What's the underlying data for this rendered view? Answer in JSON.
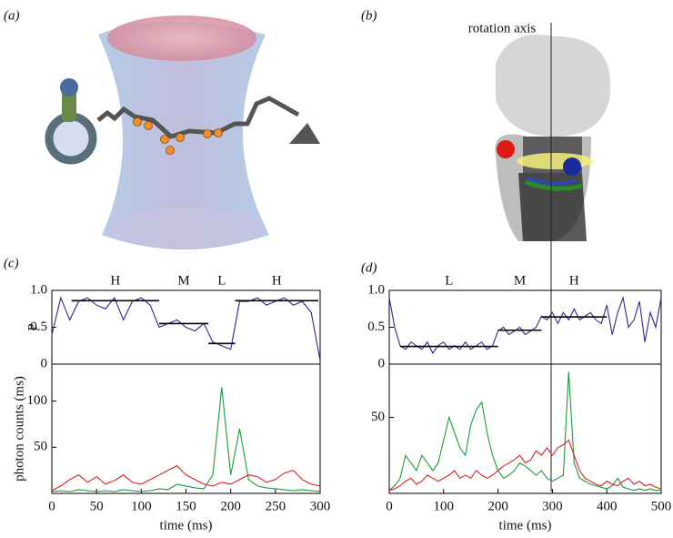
{
  "panel_labels": [
    "(a)",
    "(b)",
    "(c)",
    "(d)"
  ],
  "annotation": "rotation axis",
  "chart_data": [
    {
      "type": "line",
      "ylabel": "P",
      "xlim": [
        0,
        300
      ],
      "ylim": [
        0,
        1
      ],
      "yticks": [
        0,
        0.5,
        {
          "value": 1,
          "label": "1.0"
        }
      ],
      "x": [
        0,
        10,
        20,
        30,
        40,
        50,
        60,
        70,
        80,
        90,
        100,
        110,
        120,
        130,
        140,
        150,
        160,
        170,
        180,
        190,
        200,
        210,
        220,
        230,
        240,
        250,
        260,
        270,
        280,
        290,
        300
      ],
      "series": [
        {
          "color": "#2a2a8c",
          "values": [
            0.4,
            0.9,
            0.6,
            0.85,
            0.9,
            0.8,
            0.75,
            0.9,
            0.6,
            0.85,
            0.9,
            0.8,
            0.5,
            0.55,
            0.6,
            0.5,
            0.45,
            0.55,
            0.3,
            0.25,
            0.2,
            0.85,
            0.85,
            0.9,
            0.8,
            0.85,
            0.9,
            0.8,
            0.85,
            0.7,
            0.05
          ]
        }
      ],
      "levels": [
        {
          "label": "H",
          "x": [
            22,
            120
          ],
          "value": 0.86
        },
        {
          "label": "M",
          "x": [
            120,
            175
          ],
          "value": 0.55
        },
        {
          "label": "L",
          "x": [
            175,
            205
          ],
          "value": 0.28
        },
        {
          "label": "H",
          "x": [
            205,
            298
          ],
          "value": 0.86
        }
      ]
    },
    {
      "type": "line",
      "ylabel": "photon counts (ms)",
      "xlabel": "time (ms)",
      "xlim": [
        0,
        300
      ],
      "ylim": [
        0,
        140
      ],
      "xticks": [
        0,
        50,
        100,
        150,
        200,
        250,
        300
      ],
      "yticks": [
        50,
        100
      ],
      "x": [
        0,
        10,
        20,
        30,
        40,
        50,
        60,
        70,
        80,
        90,
        100,
        110,
        120,
        130,
        140,
        150,
        160,
        170,
        180,
        190,
        200,
        210,
        220,
        230,
        240,
        250,
        260,
        270,
        280,
        290,
        300
      ],
      "series": [
        {
          "color": "#1a9a3a",
          "values": [
            2,
            3,
            2,
            4,
            3,
            2,
            3,
            2,
            4,
            3,
            2,
            3,
            5,
            4,
            10,
            8,
            6,
            5,
            20,
            115,
            20,
            70,
            15,
            8,
            6,
            5,
            4,
            3,
            4,
            3,
            2
          ]
        },
        {
          "color": "#e02020",
          "values": [
            3,
            8,
            15,
            20,
            12,
            18,
            10,
            14,
            20,
            12,
            10,
            15,
            20,
            25,
            30,
            20,
            15,
            10,
            8,
            12,
            10,
            15,
            20,
            18,
            12,
            15,
            22,
            25,
            15,
            10,
            8
          ]
        }
      ]
    },
    {
      "type": "line",
      "xlim": [
        0,
        500
      ],
      "ylim": [
        0,
        1
      ],
      "yticks": [
        0,
        0.5,
        {
          "value": 1,
          "label": "1.0"
        }
      ],
      "x": [
        0,
        10,
        20,
        30,
        40,
        50,
        60,
        70,
        80,
        90,
        100,
        110,
        120,
        130,
        140,
        150,
        160,
        170,
        180,
        190,
        200,
        210,
        220,
        230,
        240,
        250,
        260,
        270,
        280,
        290,
        300,
        310,
        320,
        330,
        340,
        350,
        360,
        370,
        380,
        390,
        400,
        410,
        420,
        430,
        440,
        450,
        460,
        470,
        480,
        490,
        500
      ],
      "series": [
        {
          "color": "#2a2a8c",
          "values": [
            0.9,
            0.5,
            0.25,
            0.2,
            0.3,
            0.25,
            0.2,
            0.3,
            0.15,
            0.25,
            0.3,
            0.2,
            0.25,
            0.2,
            0.3,
            0.2,
            0.25,
            0.3,
            0.2,
            0.25,
            0.45,
            0.5,
            0.4,
            0.45,
            0.5,
            0.4,
            0.45,
            0.5,
            0.65,
            0.6,
            0.7,
            0.55,
            0.7,
            0.6,
            0.75,
            0.6,
            0.65,
            0.7,
            0.6,
            0.55,
            0.8,
            0.4,
            0.7,
            0.9,
            0.5,
            0.6,
            0.85,
            0.3,
            0.7,
            0.5,
            0.9
          ]
        }
      ],
      "levels": [
        {
          "label": "L",
          "x": [
            20,
            200
          ],
          "value": 0.24
        },
        {
          "label": "M",
          "x": [
            200,
            280
          ],
          "value": 0.46
        },
        {
          "label": "H",
          "x": [
            280,
            400
          ],
          "value": 0.64
        }
      ]
    },
    {
      "type": "line",
      "xlabel": "time (ms)",
      "xlim": [
        0,
        500
      ],
      "ylim": [
        0,
        85
      ],
      "xticks": [
        0,
        100,
        200,
        300,
        400,
        500
      ],
      "yticks": [
        50
      ],
      "x": [
        0,
        10,
        20,
        30,
        40,
        50,
        60,
        70,
        80,
        90,
        100,
        110,
        120,
        130,
        140,
        150,
        160,
        170,
        180,
        190,
        200,
        210,
        220,
        230,
        240,
        250,
        260,
        270,
        280,
        290,
        300,
        310,
        320,
        330,
        340,
        350,
        360,
        370,
        380,
        390,
        400,
        410,
        420,
        430,
        440,
        450,
        460,
        470,
        480,
        490,
        500
      ],
      "series": [
        {
          "color": "#1a9a3a",
          "values": [
            2,
            5,
            10,
            25,
            20,
            15,
            25,
            20,
            15,
            20,
            35,
            50,
            40,
            30,
            25,
            45,
            55,
            60,
            40,
            25,
            15,
            10,
            12,
            15,
            20,
            18,
            15,
            12,
            15,
            10,
            8,
            10,
            12,
            80,
            20,
            10,
            8,
            6,
            5,
            4,
            3,
            5,
            10,
            4,
            3,
            2,
            3,
            2,
            3,
            2,
            2
          ]
        },
        {
          "color": "#e02020",
          "values": [
            2,
            3,
            5,
            8,
            10,
            6,
            8,
            12,
            10,
            8,
            10,
            12,
            15,
            10,
            12,
            10,
            15,
            12,
            10,
            12,
            15,
            18,
            20,
            22,
            25,
            20,
            22,
            28,
            25,
            30,
            25,
            30,
            32,
            35,
            25,
            15,
            10,
            8,
            6,
            5,
            8,
            6,
            5,
            8,
            10,
            6,
            8,
            5,
            6,
            4,
            3
          ]
        }
      ]
    }
  ]
}
